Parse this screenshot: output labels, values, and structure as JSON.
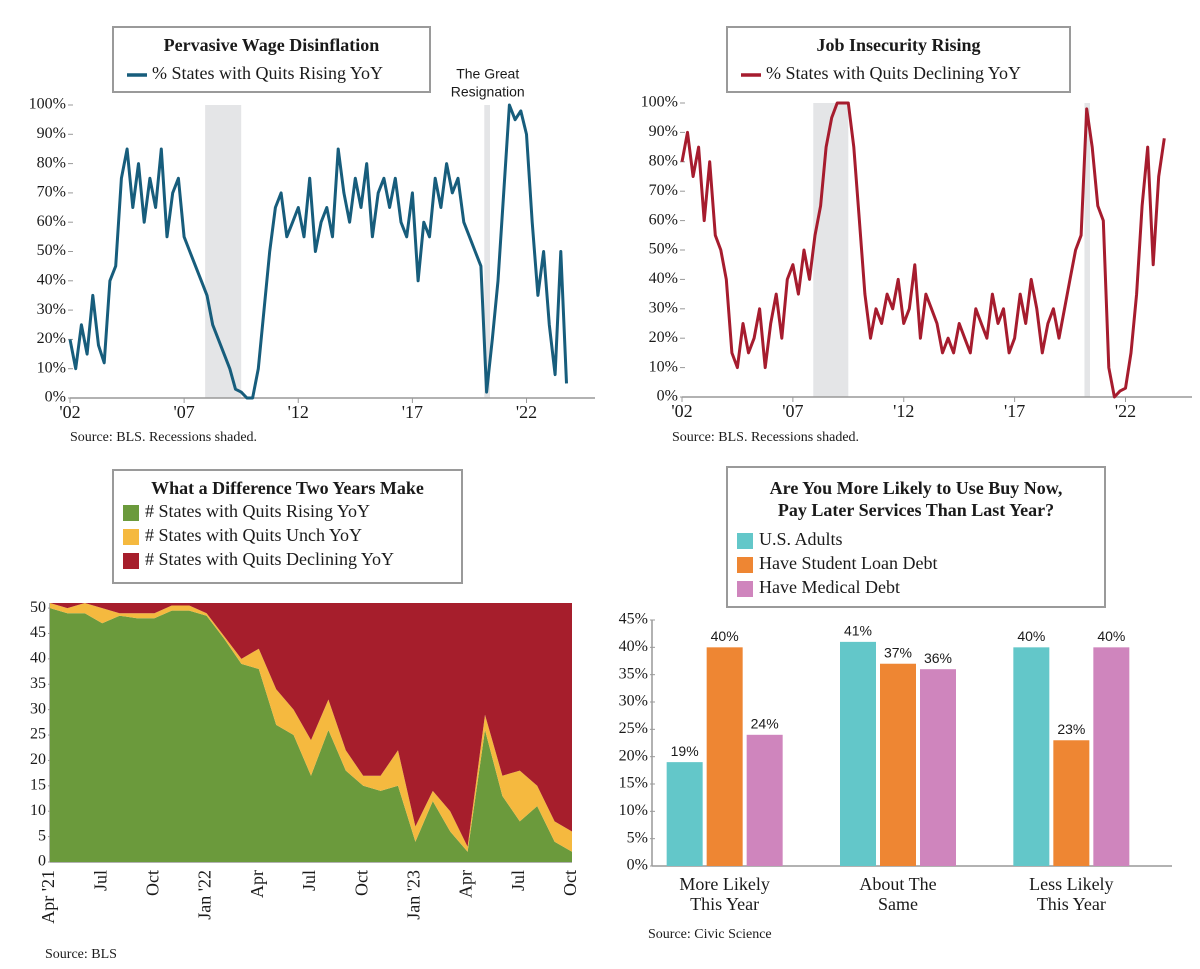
{
  "chart_data": [
    {
      "type": "line",
      "title": "Pervasive Wage Disinflation",
      "source": "Source: BLS. Recessions shaded.",
      "annotation": [
        "The Great",
        "Resignation"
      ],
      "annotation_x": 2020.3,
      "xlim": [
        2002,
        2025
      ],
      "ylim": [
        0,
        100
      ],
      "grid": false,
      "xticks": [
        {
          "value": 2002,
          "label": "'02"
        },
        {
          "value": 2007,
          "label": "'07"
        },
        {
          "value": 2012,
          "label": "'12"
        },
        {
          "value": 2017,
          "label": "'17"
        },
        {
          "value": 2022,
          "label": "'22"
        }
      ],
      "yticks": [
        {
          "value": 0,
          "label": "0%"
        },
        {
          "value": 10,
          "label": "10%"
        },
        {
          "value": 20,
          "label": "20%"
        },
        {
          "value": 30,
          "label": "30%"
        },
        {
          "value": 40,
          "label": "40%"
        },
        {
          "value": 50,
          "label": "50%"
        },
        {
          "value": 60,
          "label": "60%"
        },
        {
          "value": 70,
          "label": "70%"
        },
        {
          "value": 80,
          "label": "80%"
        },
        {
          "value": 90,
          "label": "90%"
        },
        {
          "value": 100,
          "label": "100%"
        }
      ],
      "recessions": [
        {
          "start": 2007.92,
          "end": 2009.5
        },
        {
          "start": 2020.15,
          "end": 2020.4
        }
      ],
      "x": [
        2002,
        2002.25,
        2002.5,
        2002.75,
        2003,
        2003.25,
        2003.5,
        2003.75,
        2004,
        2004.25,
        2004.5,
        2004.75,
        2005,
        2005.25,
        2005.5,
        2005.75,
        2006,
        2006.25,
        2006.5,
        2006.75,
        2007,
        2007.25,
        2007.5,
        2007.75,
        2008,
        2008.25,
        2008.5,
        2008.75,
        2009,
        2009.25,
        2009.5,
        2009.75,
        2010,
        2010.25,
        2010.5,
        2010.75,
        2011,
        2011.25,
        2011.5,
        2011.75,
        2012,
        2012.25,
        2012.5,
        2012.75,
        2013,
        2013.25,
        2013.5,
        2013.75,
        2014,
        2014.25,
        2014.5,
        2014.75,
        2015,
        2015.25,
        2015.5,
        2015.75,
        2016,
        2016.25,
        2016.5,
        2016.75,
        2017,
        2017.25,
        2017.5,
        2017.75,
        2018,
        2018.25,
        2018.5,
        2018.75,
        2019,
        2019.25,
        2019.5,
        2019.75,
        2020,
        2020.25,
        2020.5,
        2020.75,
        2021,
        2021.25,
        2021.5,
        2021.75,
        2022,
        2022.25,
        2022.5,
        2022.75,
        2023,
        2023.25,
        2023.5,
        2023.75
      ],
      "series": [
        {
          "name": "% States with Quits Rising YoY",
          "color": "#175d7c",
          "values": [
            20,
            10,
            25,
            15,
            35,
            18,
            12,
            40,
            45,
            75,
            85,
            65,
            80,
            60,
            75,
            65,
            85,
            55,
            70,
            75,
            55,
            50,
            45,
            40,
            35,
            25,
            20,
            15,
            10,
            3,
            2,
            0,
            0,
            10,
            30,
            50,
            65,
            70,
            55,
            60,
            65,
            55,
            75,
            50,
            60,
            65,
            55,
            85,
            70,
            60,
            75,
            65,
            80,
            55,
            70,
            75,
            65,
            75,
            60,
            55,
            70,
            40,
            60,
            55,
            75,
            65,
            80,
            70,
            75,
            60,
            55,
            50,
            45,
            2,
            20,
            40,
            70,
            100,
            95,
            98,
            90,
            60,
            35,
            50,
            25,
            8,
            50,
            5
          ]
        }
      ]
    },
    {
      "type": "line",
      "title": "Job Insecurity Rising",
      "source": "Source: BLS. Recessions shaded.",
      "xlim": [
        2002,
        2025
      ],
      "ylim": [
        0,
        100
      ],
      "grid": false,
      "xticks": [
        {
          "value": 2002,
          "label": "'02"
        },
        {
          "value": 2007,
          "label": "'07"
        },
        {
          "value": 2012,
          "label": "'12"
        },
        {
          "value": 2017,
          "label": "'17"
        },
        {
          "value": 2022,
          "label": "'22"
        }
      ],
      "yticks": [
        {
          "value": 0,
          "label": "0%"
        },
        {
          "value": 10,
          "label": "10%"
        },
        {
          "value": 20,
          "label": "20%"
        },
        {
          "value": 30,
          "label": "30%"
        },
        {
          "value": 40,
          "label": "40%"
        },
        {
          "value": 50,
          "label": "50%"
        },
        {
          "value": 60,
          "label": "60%"
        },
        {
          "value": 70,
          "label": "70%"
        },
        {
          "value": 80,
          "label": "80%"
        },
        {
          "value": 90,
          "label": "90%"
        },
        {
          "value": 100,
          "label": "100%"
        }
      ],
      "recessions": [
        {
          "start": 2007.92,
          "end": 2009.5
        },
        {
          "start": 2020.15,
          "end": 2020.4
        }
      ],
      "x": [
        2002,
        2002.25,
        2002.5,
        2002.75,
        2003,
        2003.25,
        2003.5,
        2003.75,
        2004,
        2004.25,
        2004.5,
        2004.75,
        2005,
        2005.25,
        2005.5,
        2005.75,
        2006,
        2006.25,
        2006.5,
        2006.75,
        2007,
        2007.25,
        2007.5,
        2007.75,
        2008,
        2008.25,
        2008.5,
        2008.75,
        2009,
        2009.25,
        2009.5,
        2009.75,
        2010,
        2010.25,
        2010.5,
        2010.75,
        2011,
        2011.25,
        2011.5,
        2011.75,
        2012,
        2012.25,
        2012.5,
        2012.75,
        2013,
        2013.25,
        2013.5,
        2013.75,
        2014,
        2014.25,
        2014.5,
        2014.75,
        2015,
        2015.25,
        2015.5,
        2015.75,
        2016,
        2016.25,
        2016.5,
        2016.75,
        2017,
        2017.25,
        2017.5,
        2017.75,
        2018,
        2018.25,
        2018.5,
        2018.75,
        2019,
        2019.25,
        2019.5,
        2019.75,
        2020,
        2020.25,
        2020.5,
        2020.75,
        2021,
        2021.25,
        2021.5,
        2021.75,
        2022,
        2022.25,
        2022.5,
        2022.75,
        2023,
        2023.25,
        2023.5,
        2023.75
      ],
      "series": [
        {
          "name": "% States with Quits Declining YoY",
          "color": "#a61c2e",
          "values": [
            80,
            90,
            75,
            85,
            60,
            80,
            55,
            50,
            40,
            15,
            10,
            25,
            15,
            20,
            30,
            10,
            25,
            35,
            20,
            40,
            45,
            35,
            50,
            40,
            55,
            65,
            85,
            95,
            100,
            100,
            100,
            85,
            60,
            35,
            20,
            30,
            25,
            35,
            30,
            40,
            25,
            30,
            45,
            20,
            35,
            30,
            25,
            15,
            20,
            15,
            25,
            20,
            15,
            30,
            25,
            20,
            35,
            25,
            30,
            15,
            20,
            35,
            25,
            40,
            30,
            15,
            25,
            30,
            20,
            30,
            40,
            50,
            55,
            98,
            85,
            65,
            60,
            10,
            0,
            2,
            3,
            15,
            35,
            65,
            85,
            45,
            75,
            88
          ]
        }
      ]
    },
    {
      "type": "area",
      "stacked": true,
      "title": "What a Difference Two Years Make",
      "source": "Source: BLS",
      "ylim": [
        0,
        51
      ],
      "yticks": [
        0,
        5,
        10,
        15,
        20,
        25,
        30,
        35,
        40,
        45,
        50
      ],
      "grid": false,
      "categories": [
        "Apr '21",
        null,
        null,
        "Jul",
        null,
        null,
        "Oct",
        null,
        null,
        "Jan '22",
        null,
        null,
        "Apr",
        null,
        null,
        "Jul",
        null,
        null,
        "Oct",
        null,
        null,
        "Jan '23",
        null,
        null,
        "Apr",
        null,
        null,
        "Jul",
        null,
        null,
        "Oct"
      ],
      "series": [
        {
          "name": "# States with Quits Rising YoY",
          "color": "#6b9a3c",
          "values": [
            50,
            49,
            49,
            47,
            48.5,
            48,
            48,
            49.5,
            49.5,
            48.5,
            44,
            39,
            38,
            27,
            25,
            17,
            26,
            18,
            15,
            14,
            15,
            4,
            12,
            6,
            2,
            26,
            13,
            8,
            11,
            4,
            2
          ]
        },
        {
          "name": "# States with Quits Unch YoY",
          "color": "#f5b93f",
          "values": [
            1,
            1,
            2,
            3,
            0.5,
            1,
            1,
            1,
            1,
            0.5,
            0.5,
            1,
            4,
            7,
            5,
            7,
            6,
            4,
            2,
            3,
            7,
            3,
            2,
            4,
            1,
            3,
            4,
            10,
            4,
            4,
            4
          ]
        },
        {
          "name": "# States with Quits Declining YoY",
          "color": "#a61e2c",
          "values": [
            0,
            1,
            0,
            1,
            2,
            2,
            2,
            0.5,
            0.5,
            2,
            6.5,
            11,
            9,
            17,
            21,
            27,
            19,
            29,
            34,
            34,
            29,
            44,
            37,
            41,
            48,
            22,
            34,
            33,
            36,
            43,
            45
          ]
        }
      ]
    },
    {
      "type": "bar",
      "title": [
        "Are You More Likely to Use Buy Now,",
        "Pay Later Services Than Last Year?"
      ],
      "source": "Source: Civic Science",
      "ylim": [
        0,
        45
      ],
      "grid": false,
      "yticks": [
        {
          "value": 0,
          "label": "0%"
        },
        {
          "value": 5,
          "label": "5%"
        },
        {
          "value": 10,
          "label": "10%"
        },
        {
          "value": 15,
          "label": "15%"
        },
        {
          "value": 20,
          "label": "20%"
        },
        {
          "value": 25,
          "label": "25%"
        },
        {
          "value": 30,
          "label": "30%"
        },
        {
          "value": 35,
          "label": "35%"
        },
        {
          "value": 40,
          "label": "40%"
        },
        {
          "value": 45,
          "label": "45%"
        }
      ],
      "categories": [
        [
          "More Likely",
          "This Year"
        ],
        [
          "About The",
          "Same"
        ],
        [
          "Less Likely",
          "This Year"
        ]
      ],
      "series": [
        {
          "name": "U.S. Adults",
          "color": "#63c7c9",
          "values": [
            19,
            41,
            40
          ],
          "value_labels": [
            "19%",
            "41%",
            "40%"
          ]
        },
        {
          "name": "Have Student Loan Debt",
          "color": "#ee8633",
          "values": [
            40,
            37,
            23
          ],
          "value_labels": [
            "40%",
            "37%",
            "23%"
          ]
        },
        {
          "name": "Have Medical Debt",
          "color": "#cf85bd",
          "values": [
            24,
            36,
            40
          ],
          "value_labels": [
            "24%",
            "36%",
            "40%"
          ]
        }
      ]
    }
  ]
}
